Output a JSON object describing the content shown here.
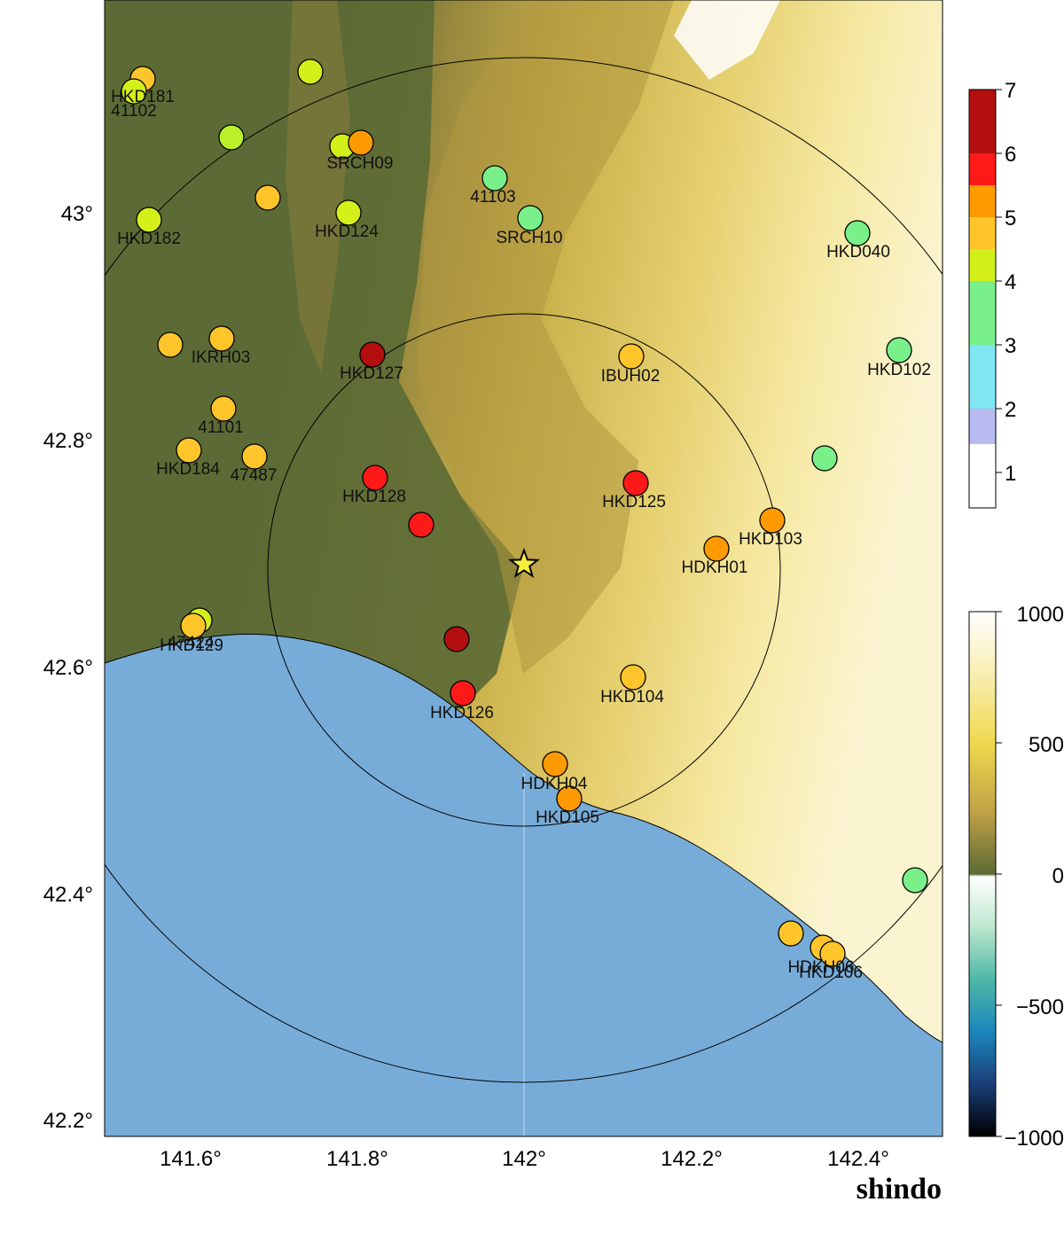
{
  "caption": "shindo",
  "axes": {
    "lon_ticks": [
      "141.6°",
      "141.8°",
      "142°",
      "142.2°",
      "142.4°"
    ],
    "lat_ticks": [
      "43°",
      "42.8°",
      "42.6°",
      "42.4°",
      "42.2°"
    ]
  },
  "epicenter": {
    "lon": 142.0,
    "lat": 42.69,
    "symbol": "star",
    "color": "#f5f03c"
  },
  "colors": {
    "sea": "#78acd8",
    "lowland": "#5c6b35",
    "intensity": {
      "1": "#ffffff",
      "2": "#b8bcf0",
      "3": "#7fe6f2",
      "4": "#7af08a",
      "4.5": "#d4f01a",
      "5": "#ffc52a",
      "5.5": "#ff9a00",
      "6": "#ff1a1a",
      "7": "#b30f0f"
    }
  },
  "shindo_scale": {
    "labels": [
      "7",
      "6",
      "5",
      "4",
      "3",
      "2",
      "1"
    ]
  },
  "elevation_scale": {
    "labels": [
      "1000",
      "500",
      "0",
      "−500",
      "−1000"
    ]
  },
  "stations": [
    {
      "name": "HKD181",
      "color": "#ffc52a"
    },
    {
      "name": "41102",
      "color": "#d4f01a"
    },
    {
      "name": "",
      "color": "#d4f01a"
    },
    {
      "name": "",
      "color": "#b9f02a"
    },
    {
      "name": "SRCH09",
      "color": "#d4f01a"
    },
    {
      "name": "",
      "color": "#ff9a00"
    },
    {
      "name": "",
      "color": "#ffc52a"
    },
    {
      "name": "HKD182",
      "color": "#d4f01a"
    },
    {
      "name": "HKD124",
      "color": "#d4f01a"
    },
    {
      "name": "41103",
      "color": "#7af08a"
    },
    {
      "name": "SRCH10",
      "color": "#7af08a"
    },
    {
      "name": "HKD040",
      "color": "#7af08a"
    },
    {
      "name": "",
      "color": "#ffc52a"
    },
    {
      "name": "IKRH03",
      "color": "#ffc52a"
    },
    {
      "name": "HKD127",
      "color": "#b30f0f"
    },
    {
      "name": "IBUH02",
      "color": "#ffc52a"
    },
    {
      "name": "HKD102",
      "color": "#7af08a"
    },
    {
      "name": "41101",
      "color": "#ffc52a"
    },
    {
      "name": "HKD184",
      "color": "#ffc52a"
    },
    {
      "name": "47487",
      "color": "#ffc52a"
    },
    {
      "name": "",
      "color": "#7af08a"
    },
    {
      "name": "HKD128",
      "color": "#ff1a1a"
    },
    {
      "name": "HKD125",
      "color": "#ff1a1a"
    },
    {
      "name": "",
      "color": "#ff1a1a"
    },
    {
      "name": "HKD103",
      "color": "#ff9a00"
    },
    {
      "name": "HDKH01",
      "color": "#ff9a00"
    },
    {
      "name": "47424",
      "color": "#d4f01a"
    },
    {
      "name": "HKD129",
      "color": "#ffc52a"
    },
    {
      "name": "",
      "color": "#b30f0f"
    },
    {
      "name": "HKD104",
      "color": "#ffc52a"
    },
    {
      "name": "HKD126",
      "color": "#ff1a1a"
    },
    {
      "name": "HDKH04",
      "color": "#ff9a00"
    },
    {
      "name": "HKD105",
      "color": "#ff9a00"
    },
    {
      "name": "",
      "color": "#7af08a"
    },
    {
      "name": "",
      "color": "#ffc52a"
    },
    {
      "name": "HDKH06",
      "color": "#ffc52a"
    },
    {
      "name": "HKD106",
      "color": "#ffc52a"
    }
  ]
}
